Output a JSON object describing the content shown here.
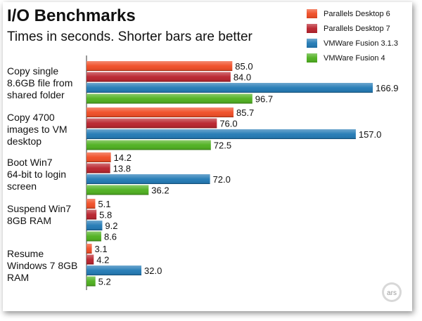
{
  "chart_data": {
    "type": "bar",
    "orientation": "horizontal",
    "title": "I/O Benchmarks",
    "subtitle": "Times in seconds. Shorter bars are better",
    "categories": [
      [
        "Copy single",
        "8.6GB file from",
        "shared folder"
      ],
      [
        "Copy 4700",
        "images to VM",
        "desktop"
      ],
      [
        "Boot Win7",
        "64-bit to login",
        "screen"
      ],
      [
        "Suspend Win7",
        "8GB RAM"
      ],
      [
        "Resume",
        "Windows 7 8GB",
        "RAM"
      ]
    ],
    "series": [
      {
        "name": "Parallels Desktop 6",
        "color": "#f04a22",
        "values": [
          85.0,
          85.7,
          14.2,
          5.1,
          3.1
        ]
      },
      {
        "name": "Parallels Desktop 7",
        "color": "#b8202a",
        "values": [
          84.0,
          76.0,
          13.8,
          5.8,
          4.2
        ]
      },
      {
        "name": "VMWare Fusion 3.1.3",
        "color": "#1f78b4",
        "values": [
          166.9,
          157.0,
          72.0,
          9.2,
          32.0
        ]
      },
      {
        "name": "VMWare Fusion 4",
        "color": "#4caf1c",
        "values": [
          96.7,
          72.5,
          36.2,
          8.6,
          5.2
        ]
      }
    ],
    "value_labels": [
      [
        "85.0",
        "84.0",
        "166.9",
        "96.7"
      ],
      [
        "85.7",
        "76.0",
        "157.0",
        "72.5"
      ],
      [
        "14.2",
        "13.8",
        "72.0",
        "36.2"
      ],
      [
        "5.1",
        "5.8",
        "9.2",
        "8.6"
      ],
      [
        "3.1",
        "4.2",
        "32.0",
        "5.2"
      ]
    ],
    "xlim": [
      0,
      180
    ],
    "legend_position": "top-right",
    "grid": false
  },
  "watermark": "ars"
}
